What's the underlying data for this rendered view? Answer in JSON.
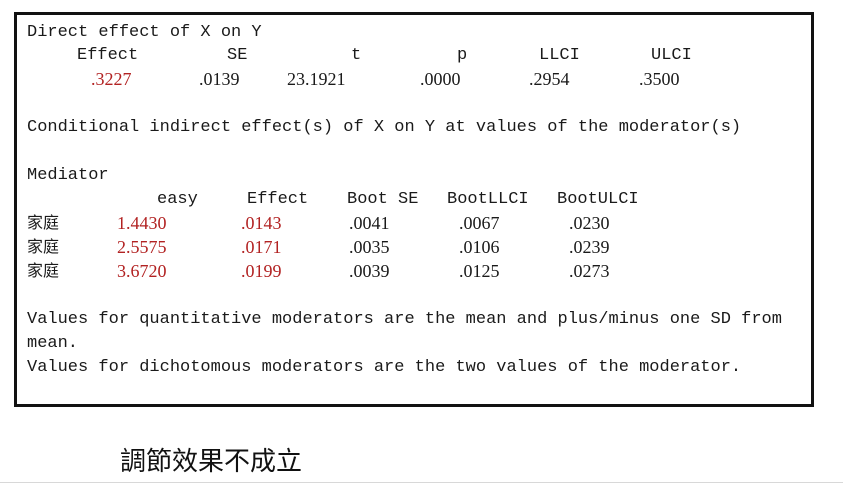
{
  "direct": {
    "title": "Direct effect of X on Y",
    "headers": [
      "Effect",
      "SE",
      "t",
      "p",
      "LLCI",
      "ULCI"
    ],
    "values": [
      ".3227",
      ".0139",
      "23.1921",
      ".0000",
      ".2954",
      ".3500"
    ]
  },
  "conditional": {
    "title": "Conditional indirect effect(s) of X on Y at values of the moderator(s)",
    "mediator_label": "Mediator",
    "headers": [
      "easy",
      "Effect",
      "Boot SE",
      "BootLLCI",
      "BootULCI"
    ],
    "rows": [
      {
        "mediator": "家庭",
        "easy": "1.4430",
        "effect": ".0143",
        "boot_se": ".0041",
        "llci": ".0067",
        "ulci": ".0230"
      },
      {
        "mediator": "家庭",
        "easy": "2.5575",
        "effect": ".0171",
        "boot_se": ".0035",
        "llci": ".0106",
        "ulci": ".0239"
      },
      {
        "mediator": "家庭",
        "easy": "3.6720",
        "effect": ".0199",
        "boot_se": ".0039",
        "llci": ".0125",
        "ulci": ".0273"
      }
    ]
  },
  "notes": {
    "line1": "Values for quantitative moderators are the mean and plus/minus one SD from",
    "line2": "mean.",
    "line3": "Values for dichotomous moderators are the two values of the moderator."
  },
  "conclusion": "調節效果不成立",
  "colors": {
    "highlight": "#b22222",
    "border": "#111111"
  }
}
